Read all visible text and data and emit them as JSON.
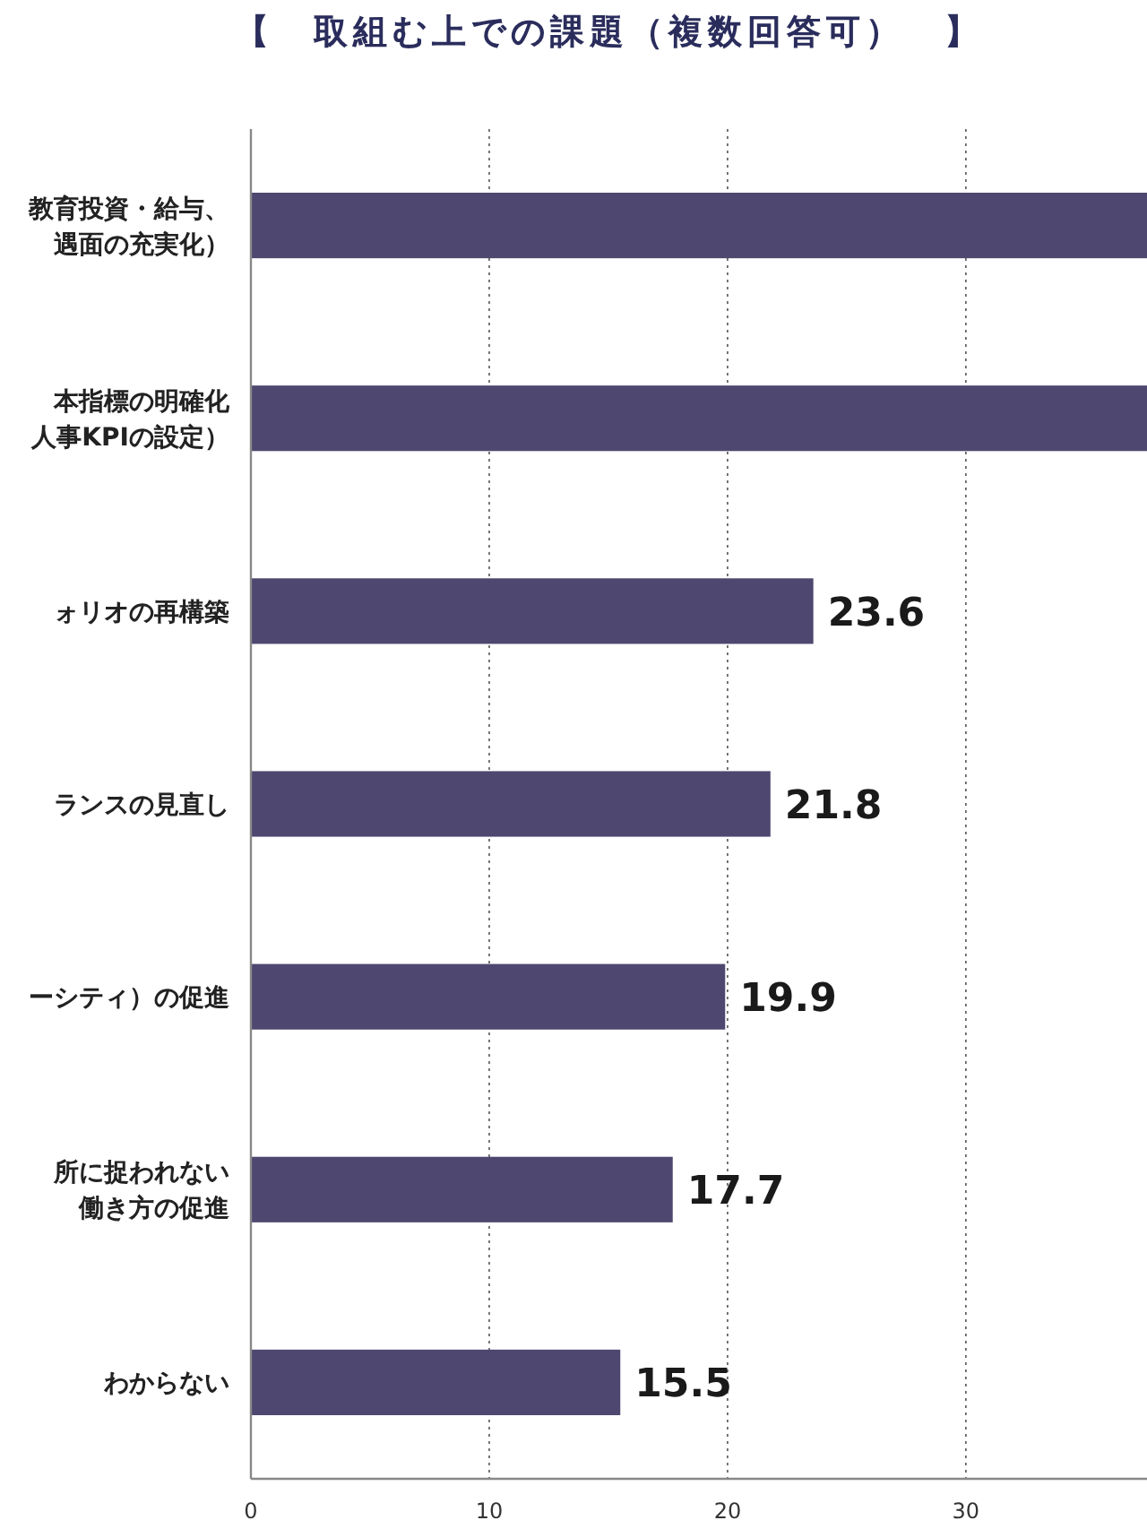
{
  "chart_data": {
    "type": "bar",
    "orientation": "horizontal",
    "title": "【　取組む上での課題（複数回答可）　】",
    "categories": [
      "教育投資・給与、遇面の充実化）",
      "本指標の明確化人事KPIの設定）",
      "ォリオの再構築",
      "ランスの見直し",
      "ーシティ）の促進",
      "所に捉われない働き方の促進",
      "わからない"
    ],
    "values": [
      37.6,
      37.6,
      23.6,
      21.8,
      19.9,
      17.7,
      15.5
    ],
    "value_labels": [
      null,
      null,
      "23.6",
      "21.8",
      "19.9",
      "17.7",
      "15.5"
    ],
    "color": "#4e4870",
    "xlim": [
      0,
      37.6
    ],
    "xticks": [
      0,
      10,
      20,
      30
    ],
    "grid": "x"
  }
}
